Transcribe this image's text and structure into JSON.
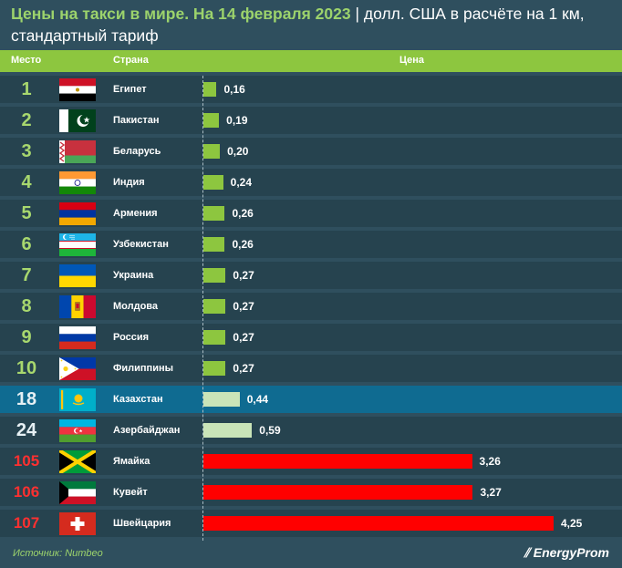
{
  "title": {
    "part1": "Цены на такси в мире. На 14 февраля 2023",
    "part2": " | долл. США в расчёте на 1 км, стандартный тариф"
  },
  "header": {
    "rank": "Место",
    "country": "Страна",
    "price": "Цена"
  },
  "footer": {
    "source": "Источник: Numbeo",
    "logo": "EnergyProm"
  },
  "chart_data": {
    "type": "bar",
    "orientation": "horizontal",
    "categories": [
      "Египет",
      "Пакистан",
      "Беларусь",
      "Индия",
      "Армения",
      "Узбекистан",
      "Украина",
      "Молдова",
      "Россия",
      "Филиппины",
      "Казахстан",
      "Азербайджан",
      "Ямайка",
      "Кувейт",
      "Швейцария"
    ],
    "ranks": [
      "1",
      "2",
      "3",
      "4",
      "5",
      "6",
      "7",
      "8",
      "9",
      "10",
      "18",
      "24",
      "105",
      "106",
      "107"
    ],
    "values": [
      0.16,
      0.19,
      0.2,
      0.24,
      0.26,
      0.26,
      0.27,
      0.27,
      0.27,
      0.27,
      0.44,
      0.59,
      3.26,
      3.27,
      4.25
    ],
    "value_labels": [
      "0,16",
      "0,19",
      "0,20",
      "0,24",
      "0,26",
      "0,26",
      "0,27",
      "0,27",
      "0,27",
      "0,27",
      "0,44",
      "0,59",
      "3,26",
      "3,27",
      "4,25"
    ],
    "flags": [
      "egypt-flag",
      "pakistan-flag",
      "belarus-flag",
      "india-flag",
      "armenia-flag",
      "uzbekistan-flag",
      "ukraine-flag",
      "moldova-flag",
      "russia-flag",
      "philippines-flag",
      "kazakhstan-flag",
      "azerbaijan-flag",
      "jamaica-flag",
      "kuwait-flag",
      "switzerland-flag"
    ],
    "highlight_index": 10,
    "colors": {
      "green_bar": "#8dc63f",
      "light_bar": "#c9e4b8",
      "red_bar": "#ff0000",
      "highlight_row": "#0f6b91",
      "row": "#26434f",
      "background": "#2f4f5e"
    }
  }
}
